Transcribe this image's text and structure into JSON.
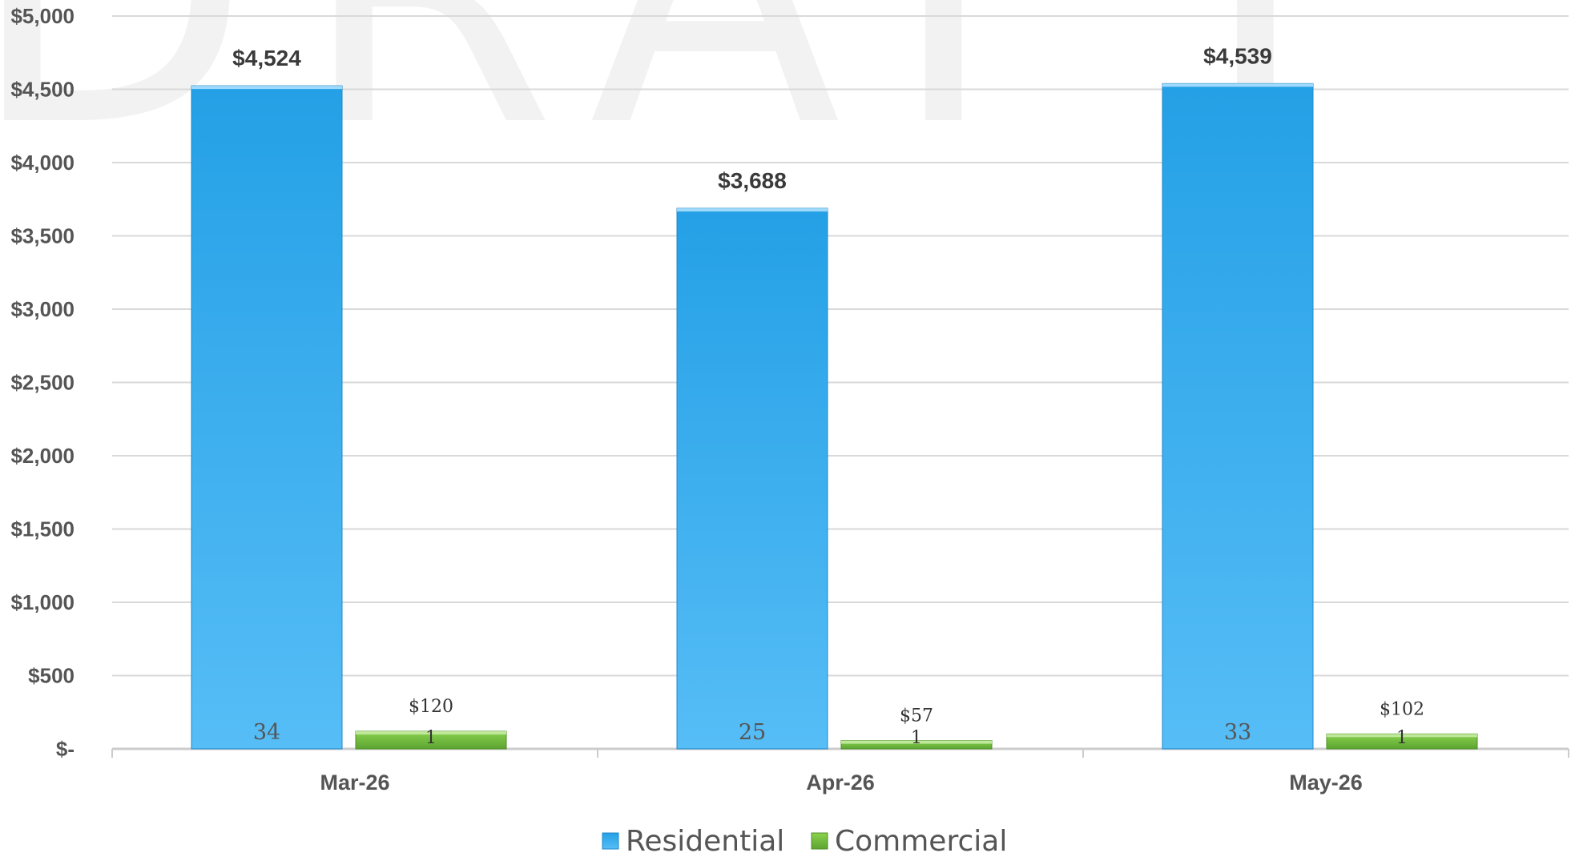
{
  "watermark": "DRAFT",
  "chart_data": {
    "type": "bar",
    "categories": [
      "Mar-26",
      "Apr-26",
      "May-26"
    ],
    "series": [
      {
        "name": "Residential",
        "color": "#2b9fe6",
        "values": [
          4524,
          3688,
          4539
        ],
        "value_labels": [
          "$4,524",
          "$3,688",
          "$4,539"
        ],
        "counts": [
          "34",
          "25",
          "33"
        ]
      },
      {
        "name": "Commercial",
        "color": "#7cc242",
        "values": [
          120,
          57,
          102
        ],
        "value_labels": [
          "$120",
          "$57",
          "$102"
        ],
        "counts": [
          "1",
          "1",
          "1"
        ]
      }
    ],
    "ylim": [
      0,
      5000
    ],
    "yticks": [
      0,
      500,
      1000,
      1500,
      2000,
      2500,
      3000,
      3500,
      4000,
      4500,
      5000
    ],
    "ytick_labels": [
      "$-",
      "$500",
      "$1,000",
      "$1,500",
      "$2,000",
      "$2,500",
      "$3,000",
      "$3,500",
      "$4,000",
      "$4,500",
      "$5,000"
    ],
    "grid": true,
    "legend_position": "bottom"
  }
}
